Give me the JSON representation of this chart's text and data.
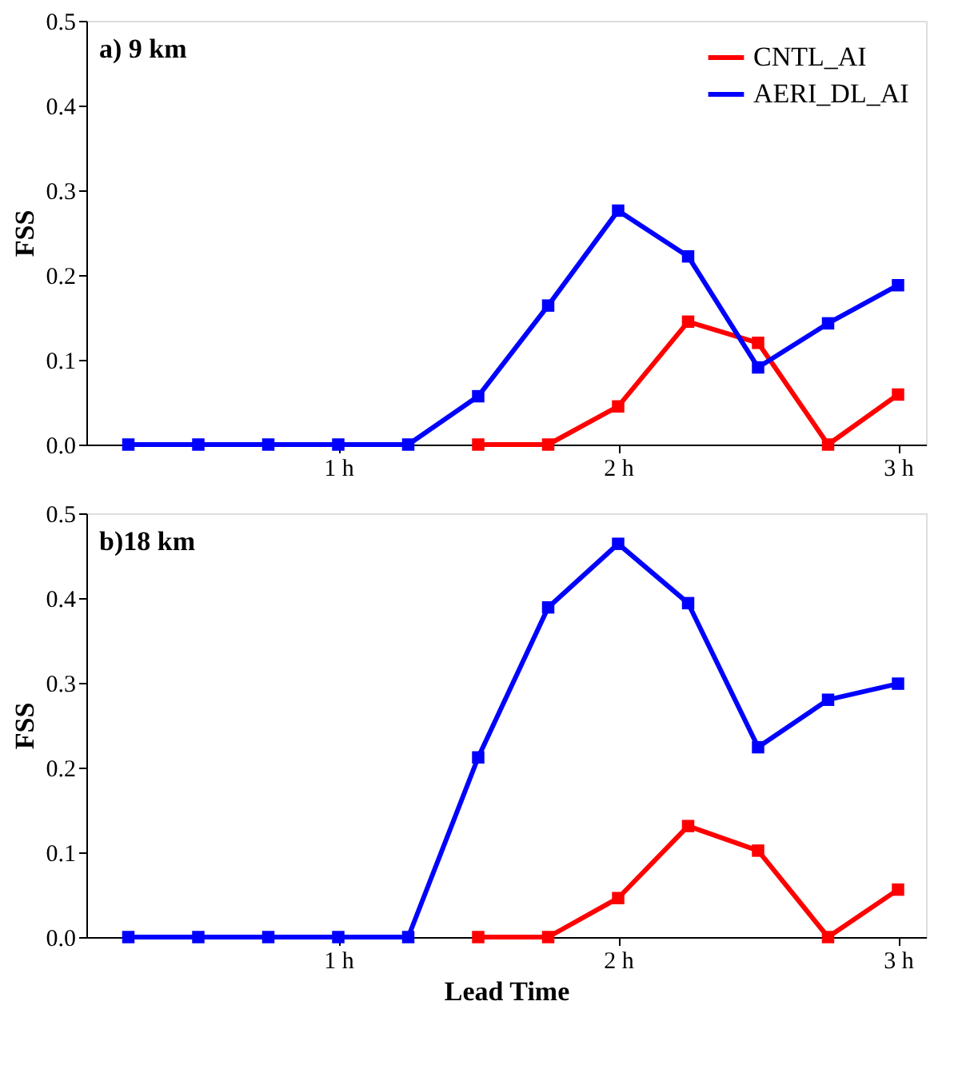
{
  "chart_data": [
    {
      "type": "line",
      "annotations": [
        "a) 9 km"
      ],
      "ylabel": "FSS",
      "x": [
        0.25,
        0.5,
        0.75,
        1.0,
        1.25,
        1.5,
        1.75,
        2.0,
        2.25,
        2.5,
        2.75,
        3.0
      ],
      "series": [
        {
          "name": "CNTL_AI",
          "color": "#ff0000",
          "values": [
            null,
            null,
            null,
            null,
            null,
            0.0,
            0.0,
            0.045,
            0.145,
            0.12,
            0.0,
            0.059
          ]
        },
        {
          "name": "AERI_DL_AI",
          "color": "#0000ff",
          "values": [
            0.0,
            0.0,
            0.0,
            0.0,
            0.0,
            0.057,
            0.164,
            0.276,
            0.222,
            0.091,
            0.143,
            0.188
          ]
        }
      ],
      "xlim": [
        0.1,
        3.1
      ],
      "xticks": [
        {
          "value": 1,
          "label": "1 h"
        },
        {
          "value": 2,
          "label": "2 h"
        },
        {
          "value": 3,
          "label": "3 h"
        }
      ],
      "ylim": [
        0,
        0.5
      ],
      "yticks": [
        {
          "value": 0,
          "label": "0.0"
        },
        {
          "value": 0.1,
          "label": "0.1"
        },
        {
          "value": 0.2,
          "label": "0.2"
        },
        {
          "value": 0.3,
          "label": "0.3"
        },
        {
          "value": 0.4,
          "label": "0.4"
        },
        {
          "value": 0.5,
          "label": "0.5"
        }
      ],
      "marker": "square",
      "line_style": "solid",
      "grid": false,
      "legend": "top right"
    },
    {
      "type": "line",
      "annotations": [
        "b)18 km"
      ],
      "ylabel": "FSS",
      "xlabel": "Lead Time",
      "x": [
        0.25,
        0.5,
        0.75,
        1.0,
        1.25,
        1.5,
        1.75,
        2.0,
        2.25,
        2.5,
        2.75,
        3.0
      ],
      "series": [
        {
          "color": "#ff0000",
          "values": [
            null,
            null,
            null,
            null,
            null,
            0.0,
            0.0,
            0.046,
            0.131,
            0.102,
            0.0,
            0.056
          ]
        },
        {
          "color": "#0000ff",
          "values": [
            0.0,
            0.0,
            0.0,
            0.0,
            0.0,
            0.212,
            0.389,
            0.464,
            0.394,
            0.224,
            0.28,
            0.299
          ]
        }
      ],
      "xlim": [
        0.1,
        3.1
      ],
      "xticks": [
        {
          "value": 1,
          "label": "1 h"
        },
        {
          "value": 2,
          "label": "2 h"
        },
        {
          "value": 3,
          "label": "3 h"
        }
      ],
      "ylim": [
        0,
        0.5
      ],
      "yticks": [
        {
          "value": 0,
          "label": "0.0"
        },
        {
          "value": 0.1,
          "label": "0.1"
        },
        {
          "value": 0.2,
          "label": "0.2"
        },
        {
          "value": 0.3,
          "label": "0.3"
        },
        {
          "value": 0.4,
          "label": "0.4"
        },
        {
          "value": 0.5,
          "label": "0.5"
        }
      ],
      "marker": "square",
      "line_style": "solid",
      "grid": false
    }
  ]
}
